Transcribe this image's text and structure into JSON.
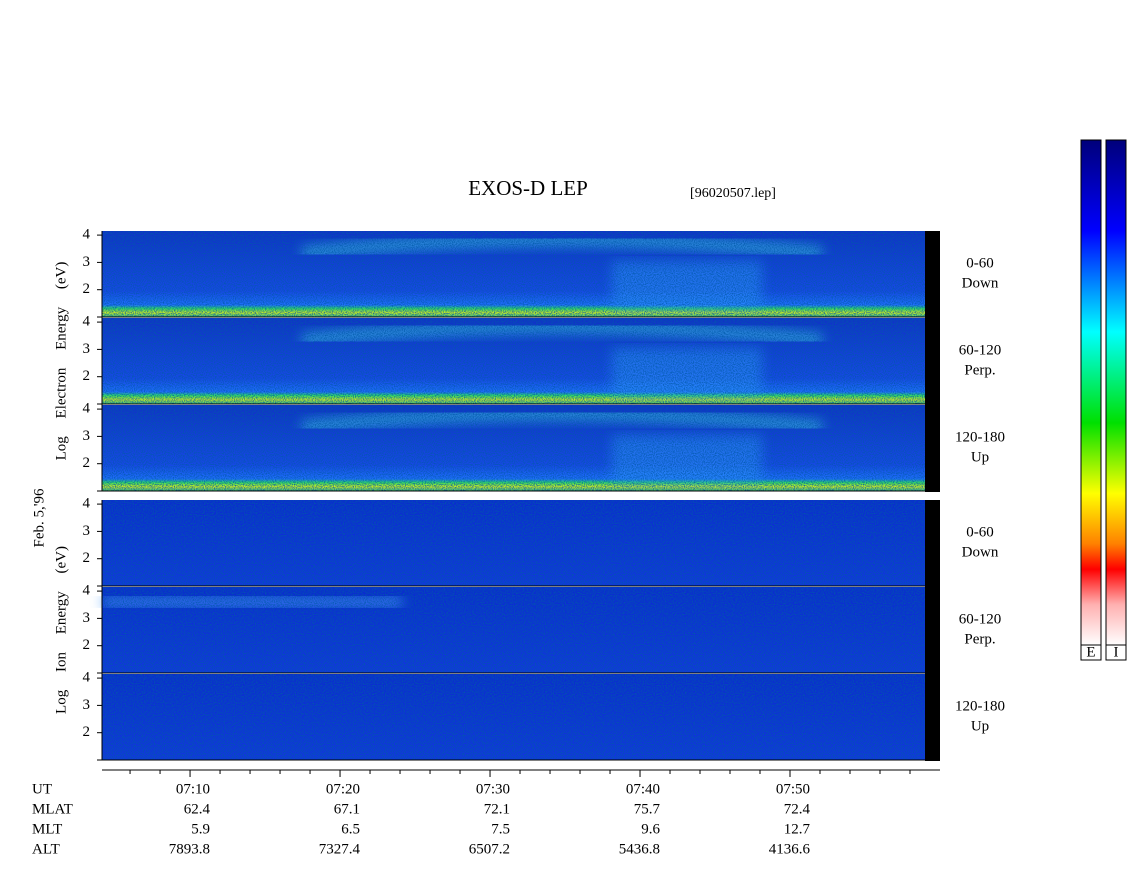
{
  "title": "EXOS-D LEP",
  "file": "[96020507.lep]",
  "date": "Feb. 5,'96",
  "ylim": [
    1,
    4.15
  ],
  "yticks": [
    1,
    2,
    3,
    4
  ],
  "ytick_labels": [
    "2",
    "3",
    "4"
  ],
  "xlim": [
    4.13,
    60
  ],
  "xticks": [
    {
      "value": 10,
      "label": "07:10"
    },
    {
      "value": 20,
      "label": "07:20"
    },
    {
      "value": 30,
      "label": "07:30"
    },
    {
      "value": 40,
      "label": "07:40"
    },
    {
      "value": 50,
      "label": "07:50"
    }
  ],
  "xminorticks": [
    6,
    8,
    12,
    14,
    16,
    18,
    22,
    24,
    26,
    28,
    32,
    34,
    36,
    38,
    42,
    44,
    46,
    48,
    52,
    54,
    56,
    58
  ],
  "groups": [
    {
      "axis_label": "Log Electron Energy (eV)",
      "kind": "electron",
      "panels": [
        {
          "angle": "0-60",
          "direction": "Down"
        },
        {
          "angle": "60-120",
          "direction": "Perp."
        },
        {
          "angle": "120-180",
          "direction": "Up"
        }
      ]
    },
    {
      "axis_label": "Log Ion Energy (eV)",
      "kind": "ion",
      "panels": [
        {
          "angle": "0-60",
          "direction": "Down"
        },
        {
          "angle": "60-120",
          "direction": "Perp."
        },
        {
          "angle": "120-180",
          "direction": "Up"
        }
      ]
    }
  ],
  "table": {
    "rows": [
      {
        "label": "UT"
      },
      {
        "label": "MLAT",
        "cells": [
          "62.4",
          "67.1",
          "72.1",
          "75.7",
          "72.4"
        ]
      },
      {
        "label": "MLT",
        "cells": [
          "5.9",
          "6.5",
          "7.5",
          "9.6",
          "12.7"
        ]
      },
      {
        "label": "ALT",
        "cells": [
          "7893.8",
          "7327.4",
          "6507.2",
          "5436.8",
          "4136.6"
        ]
      }
    ]
  },
  "colorbars": [
    "E",
    "I"
  ]
}
